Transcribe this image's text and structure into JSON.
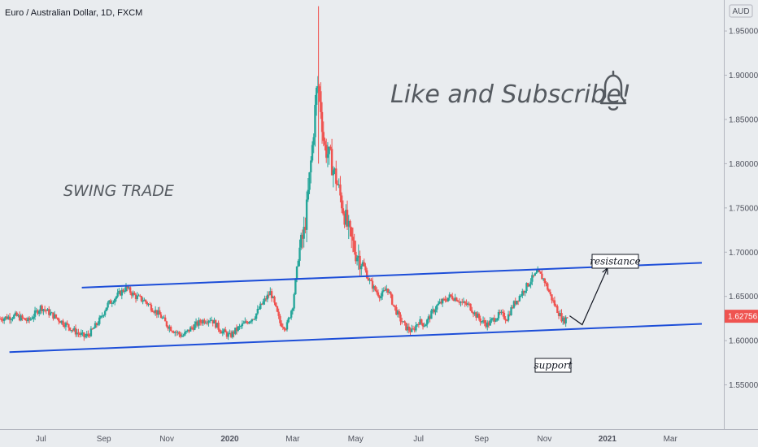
{
  "chart_data": {
    "type": "candlestick",
    "title": "Euro / Australian Dollar, 1D, FXCM",
    "currency_label": "AUD",
    "last_price": "1.62756",
    "y_ticks": [
      "1.95000",
      "1.90000",
      "1.85000",
      "1.80000",
      "1.75000",
      "1.70000",
      "1.65000",
      "1.60000",
      "1.55000"
    ],
    "y_tick_values": [
      1.95,
      1.9,
      1.85,
      1.8,
      1.75,
      1.7,
      1.65,
      1.6,
      1.55
    ],
    "x_ticks": [
      "Jul",
      "Sep",
      "Nov",
      "2020",
      "Mar",
      "May",
      "Jul",
      "Sep",
      "Nov",
      "2021",
      "Mar"
    ],
    "x_tick_months": [
      0,
      2,
      4,
      6,
      8,
      10,
      12,
      14,
      16,
      18,
      20
    ],
    "ylim": [
      1.5,
      1.985
    ],
    "xlim": [
      -1.3,
      21.7
    ],
    "close_path": [
      [
        -1.3,
        1.625
      ],
      [
        -0.8,
        1.628
      ],
      [
        -0.4,
        1.622
      ],
      [
        0,
        1.638
      ],
      [
        0.4,
        1.628
      ],
      [
        0.8,
        1.618
      ],
      [
        1.1,
        1.61
      ],
      [
        1.4,
        1.604
      ],
      [
        1.6,
        1.61
      ],
      [
        1.9,
        1.625
      ],
      [
        2.1,
        1.64
      ],
      [
        2.4,
        1.65
      ],
      [
        2.7,
        1.66
      ],
      [
        3.0,
        1.65
      ],
      [
        3.3,
        1.645
      ],
      [
        3.5,
        1.638
      ],
      [
        3.8,
        1.628
      ],
      [
        4.0,
        1.618
      ],
      [
        4.2,
        1.612
      ],
      [
        4.5,
        1.605
      ],
      [
        4.8,
        1.615
      ],
      [
        5.1,
        1.622
      ],
      [
        5.4,
        1.625
      ],
      [
        5.7,
        1.612
      ],
      [
        6.0,
        1.605
      ],
      [
        6.2,
        1.612
      ],
      [
        6.5,
        1.62
      ],
      [
        6.8,
        1.628
      ],
      [
        7.0,
        1.64
      ],
      [
        7.3,
        1.655
      ],
      [
        7.6,
        1.62
      ],
      [
        7.8,
        1.615
      ],
      [
        8.0,
        1.64
      ],
      [
        8.2,
        1.7
      ],
      [
        8.35,
        1.72
      ],
      [
        8.45,
        1.75
      ],
      [
        8.55,
        1.79
      ],
      [
        8.65,
        1.83
      ],
      [
        8.75,
        1.88
      ],
      [
        8.82,
        1.89
      ],
      [
        8.9,
        1.86
      ],
      [
        9.0,
        1.82
      ],
      [
        9.2,
        1.805
      ],
      [
        9.4,
        1.78
      ],
      [
        9.6,
        1.75
      ],
      [
        9.8,
        1.72
      ],
      [
        10.0,
        1.7
      ],
      [
        10.2,
        1.69
      ],
      [
        10.4,
        1.67
      ],
      [
        10.6,
        1.658
      ],
      [
        10.8,
        1.65
      ],
      [
        11.0,
        1.66
      ],
      [
        11.2,
        1.64
      ],
      [
        11.4,
        1.625
      ],
      [
        11.6,
        1.615
      ],
      [
        11.8,
        1.61
      ],
      [
        12.0,
        1.622
      ],
      [
        12.2,
        1.618
      ],
      [
        12.4,
        1.63
      ],
      [
        12.6,
        1.64
      ],
      [
        12.8,
        1.645
      ],
      [
        13.0,
        1.65
      ],
      [
        13.2,
        1.648
      ],
      [
        13.4,
        1.642
      ],
      [
        13.6,
        1.64
      ],
      [
        13.8,
        1.63
      ],
      [
        14.0,
        1.622
      ],
      [
        14.2,
        1.618
      ],
      [
        14.4,
        1.625
      ],
      [
        14.6,
        1.63
      ],
      [
        14.8,
        1.625
      ],
      [
        15.0,
        1.64
      ],
      [
        15.2,
        1.65
      ],
      [
        15.4,
        1.66
      ],
      [
        15.6,
        1.67
      ],
      [
        15.8,
        1.677
      ],
      [
        16.0,
        1.668
      ],
      [
        16.2,
        1.65
      ],
      [
        16.4,
        1.635
      ],
      [
        16.6,
        1.622
      ],
      [
        16.75,
        1.628
      ]
    ],
    "annotations": {
      "swing_trade": "SWING TRADE",
      "like_subscribe": "Like and Subscribe!",
      "resistance_label": "resistance",
      "support_label": "support"
    },
    "resistance_line": {
      "x": [
        1.3,
        21.0
      ],
      "y": [
        1.66,
        1.688
      ]
    },
    "support_line": {
      "x": [
        -1.0,
        21.0
      ],
      "y": [
        1.587,
        1.619
      ]
    },
    "projection_arrow": [
      [
        16.8,
        1.628
      ],
      [
        17.2,
        1.618
      ],
      [
        18.0,
        1.682
      ]
    ],
    "colors": {
      "up": "#26a69a",
      "down": "#ef5350",
      "trend_line": "#1d4ed8",
      "last_price_badge": "#ef5350",
      "background": "#e9ecef"
    }
  }
}
